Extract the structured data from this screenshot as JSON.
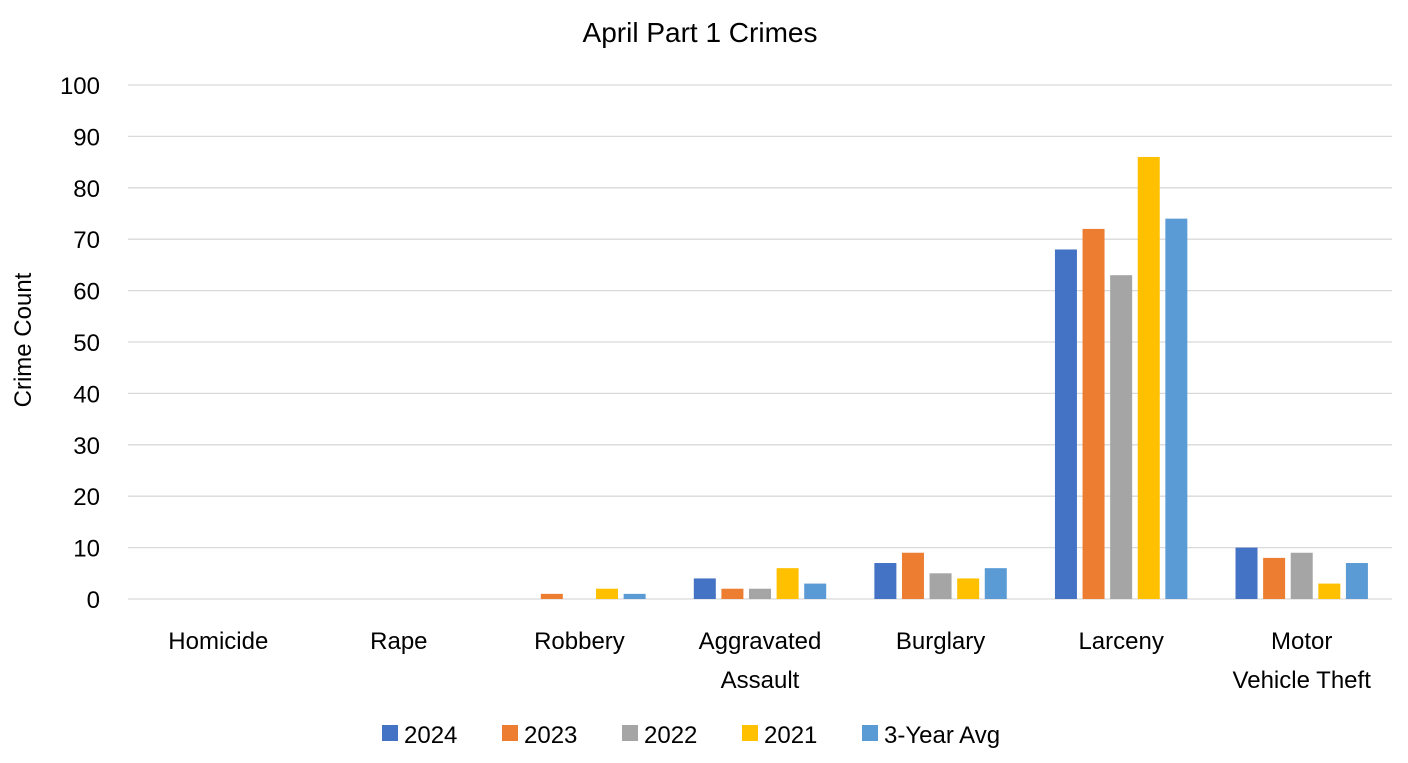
{
  "chart_data": {
    "type": "bar",
    "title": "April Part 1 Crimes",
    "xlabel": "",
    "ylabel": "Crime Count",
    "ylim": [
      0,
      100
    ],
    "yticks": [
      0,
      10,
      20,
      30,
      40,
      50,
      60,
      70,
      80,
      90,
      100
    ],
    "grid": true,
    "legend_position": "bottom",
    "categories": [
      "Homicide",
      "Rape",
      "Robbery",
      "Aggravated Assault",
      "Burglary",
      "Larceny",
      "Motor Vehicle Theft"
    ],
    "category_lines": [
      [
        "Homicide"
      ],
      [
        "Rape"
      ],
      [
        "Robbery"
      ],
      [
        "Aggravated",
        "Assault"
      ],
      [
        "Burglary"
      ],
      [
        "Larceny"
      ],
      [
        "Motor",
        "Vehicle Theft"
      ]
    ],
    "series": [
      {
        "name": "2024",
        "color": "#4472C4",
        "values": [
          0,
          0,
          0,
          4,
          7,
          68,
          10
        ]
      },
      {
        "name": "2023",
        "color": "#ED7D31",
        "values": [
          0,
          0,
          1,
          2,
          9,
          72,
          8
        ]
      },
      {
        "name": "2022",
        "color": "#A5A5A5",
        "values": [
          0,
          0,
          0,
          2,
          5,
          63,
          9
        ]
      },
      {
        "name": "2021",
        "color": "#FFC000",
        "values": [
          0,
          0,
          2,
          6,
          4,
          86,
          3
        ]
      },
      {
        "name": "3-Year Avg",
        "color": "#5B9BD5",
        "values": [
          0,
          0,
          1,
          3,
          6,
          74,
          7
        ]
      }
    ]
  }
}
